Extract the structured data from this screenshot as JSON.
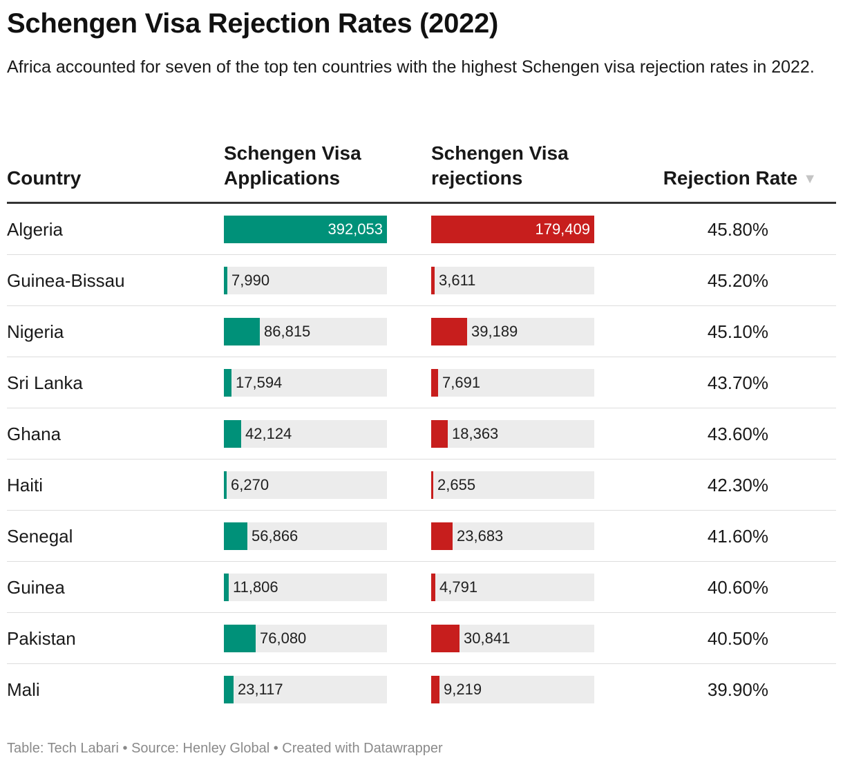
{
  "title": "Schengen Visa Rejection Rates (2022)",
  "subtitle": "Africa accounted for seven of the top ten countries with the highest Schengen visa rejection rates in 2022.",
  "headers": {
    "country": "Country",
    "applications": "Schengen Visa Applications",
    "rejections": "Schengen Visa rejections",
    "rate": "Rejection Rate"
  },
  "sort_icon": "sort-descending-icon",
  "colors": {
    "applications_bar": "#009179",
    "rejections_bar": "#c71e1d",
    "bar_track": "#ececec"
  },
  "footer": {
    "text": "Table: Tech Labari • Source: Henley Global • Created with Datawrapper"
  },
  "chart_data": {
    "type": "table",
    "columns": [
      "Country",
      "Schengen Visa Applications",
      "Schengen Visa rejections",
      "Rejection Rate"
    ],
    "sort": {
      "column": "Rejection Rate",
      "order": "descending"
    },
    "bar_max": {
      "applications": 392053,
      "rejections": 179409
    },
    "rows": [
      {
        "country": "Algeria",
        "applications": 392053,
        "applications_label": "392,053",
        "rejections": 179409,
        "rejections_label": "179,409",
        "rate": "45.80%"
      },
      {
        "country": "Guinea-Bissau",
        "applications": 7990,
        "applications_label": "7,990",
        "rejections": 3611,
        "rejections_label": "3,611",
        "rate": "45.20%"
      },
      {
        "country": "Nigeria",
        "applications": 86815,
        "applications_label": "86,815",
        "rejections": 39189,
        "rejections_label": "39,189",
        "rate": "45.10%"
      },
      {
        "country": "Sri Lanka",
        "applications": 17594,
        "applications_label": "17,594",
        "rejections": 7691,
        "rejections_label": "7,691",
        "rate": "43.70%"
      },
      {
        "country": "Ghana",
        "applications": 42124,
        "applications_label": "42,124",
        "rejections": 18363,
        "rejections_label": "18,363",
        "rate": "43.60%"
      },
      {
        "country": "Haiti",
        "applications": 6270,
        "applications_label": "6,270",
        "rejections": 2655,
        "rejections_label": "2,655",
        "rate": "42.30%"
      },
      {
        "country": "Senegal",
        "applications": 56866,
        "applications_label": "56,866",
        "rejections": 23683,
        "rejections_label": "23,683",
        "rate": "41.60%"
      },
      {
        "country": "Guinea",
        "applications": 11806,
        "applications_label": "11,806",
        "rejections": 4791,
        "rejections_label": "4,791",
        "rate": "40.60%"
      },
      {
        "country": "Pakistan",
        "applications": 76080,
        "applications_label": "76,080",
        "rejections": 30841,
        "rejections_label": "30,841",
        "rate": "40.50%"
      },
      {
        "country": "Mali",
        "applications": 23117,
        "applications_label": "23,117",
        "rejections": 9219,
        "rejections_label": "9,219",
        "rate": "39.90%"
      }
    ]
  }
}
